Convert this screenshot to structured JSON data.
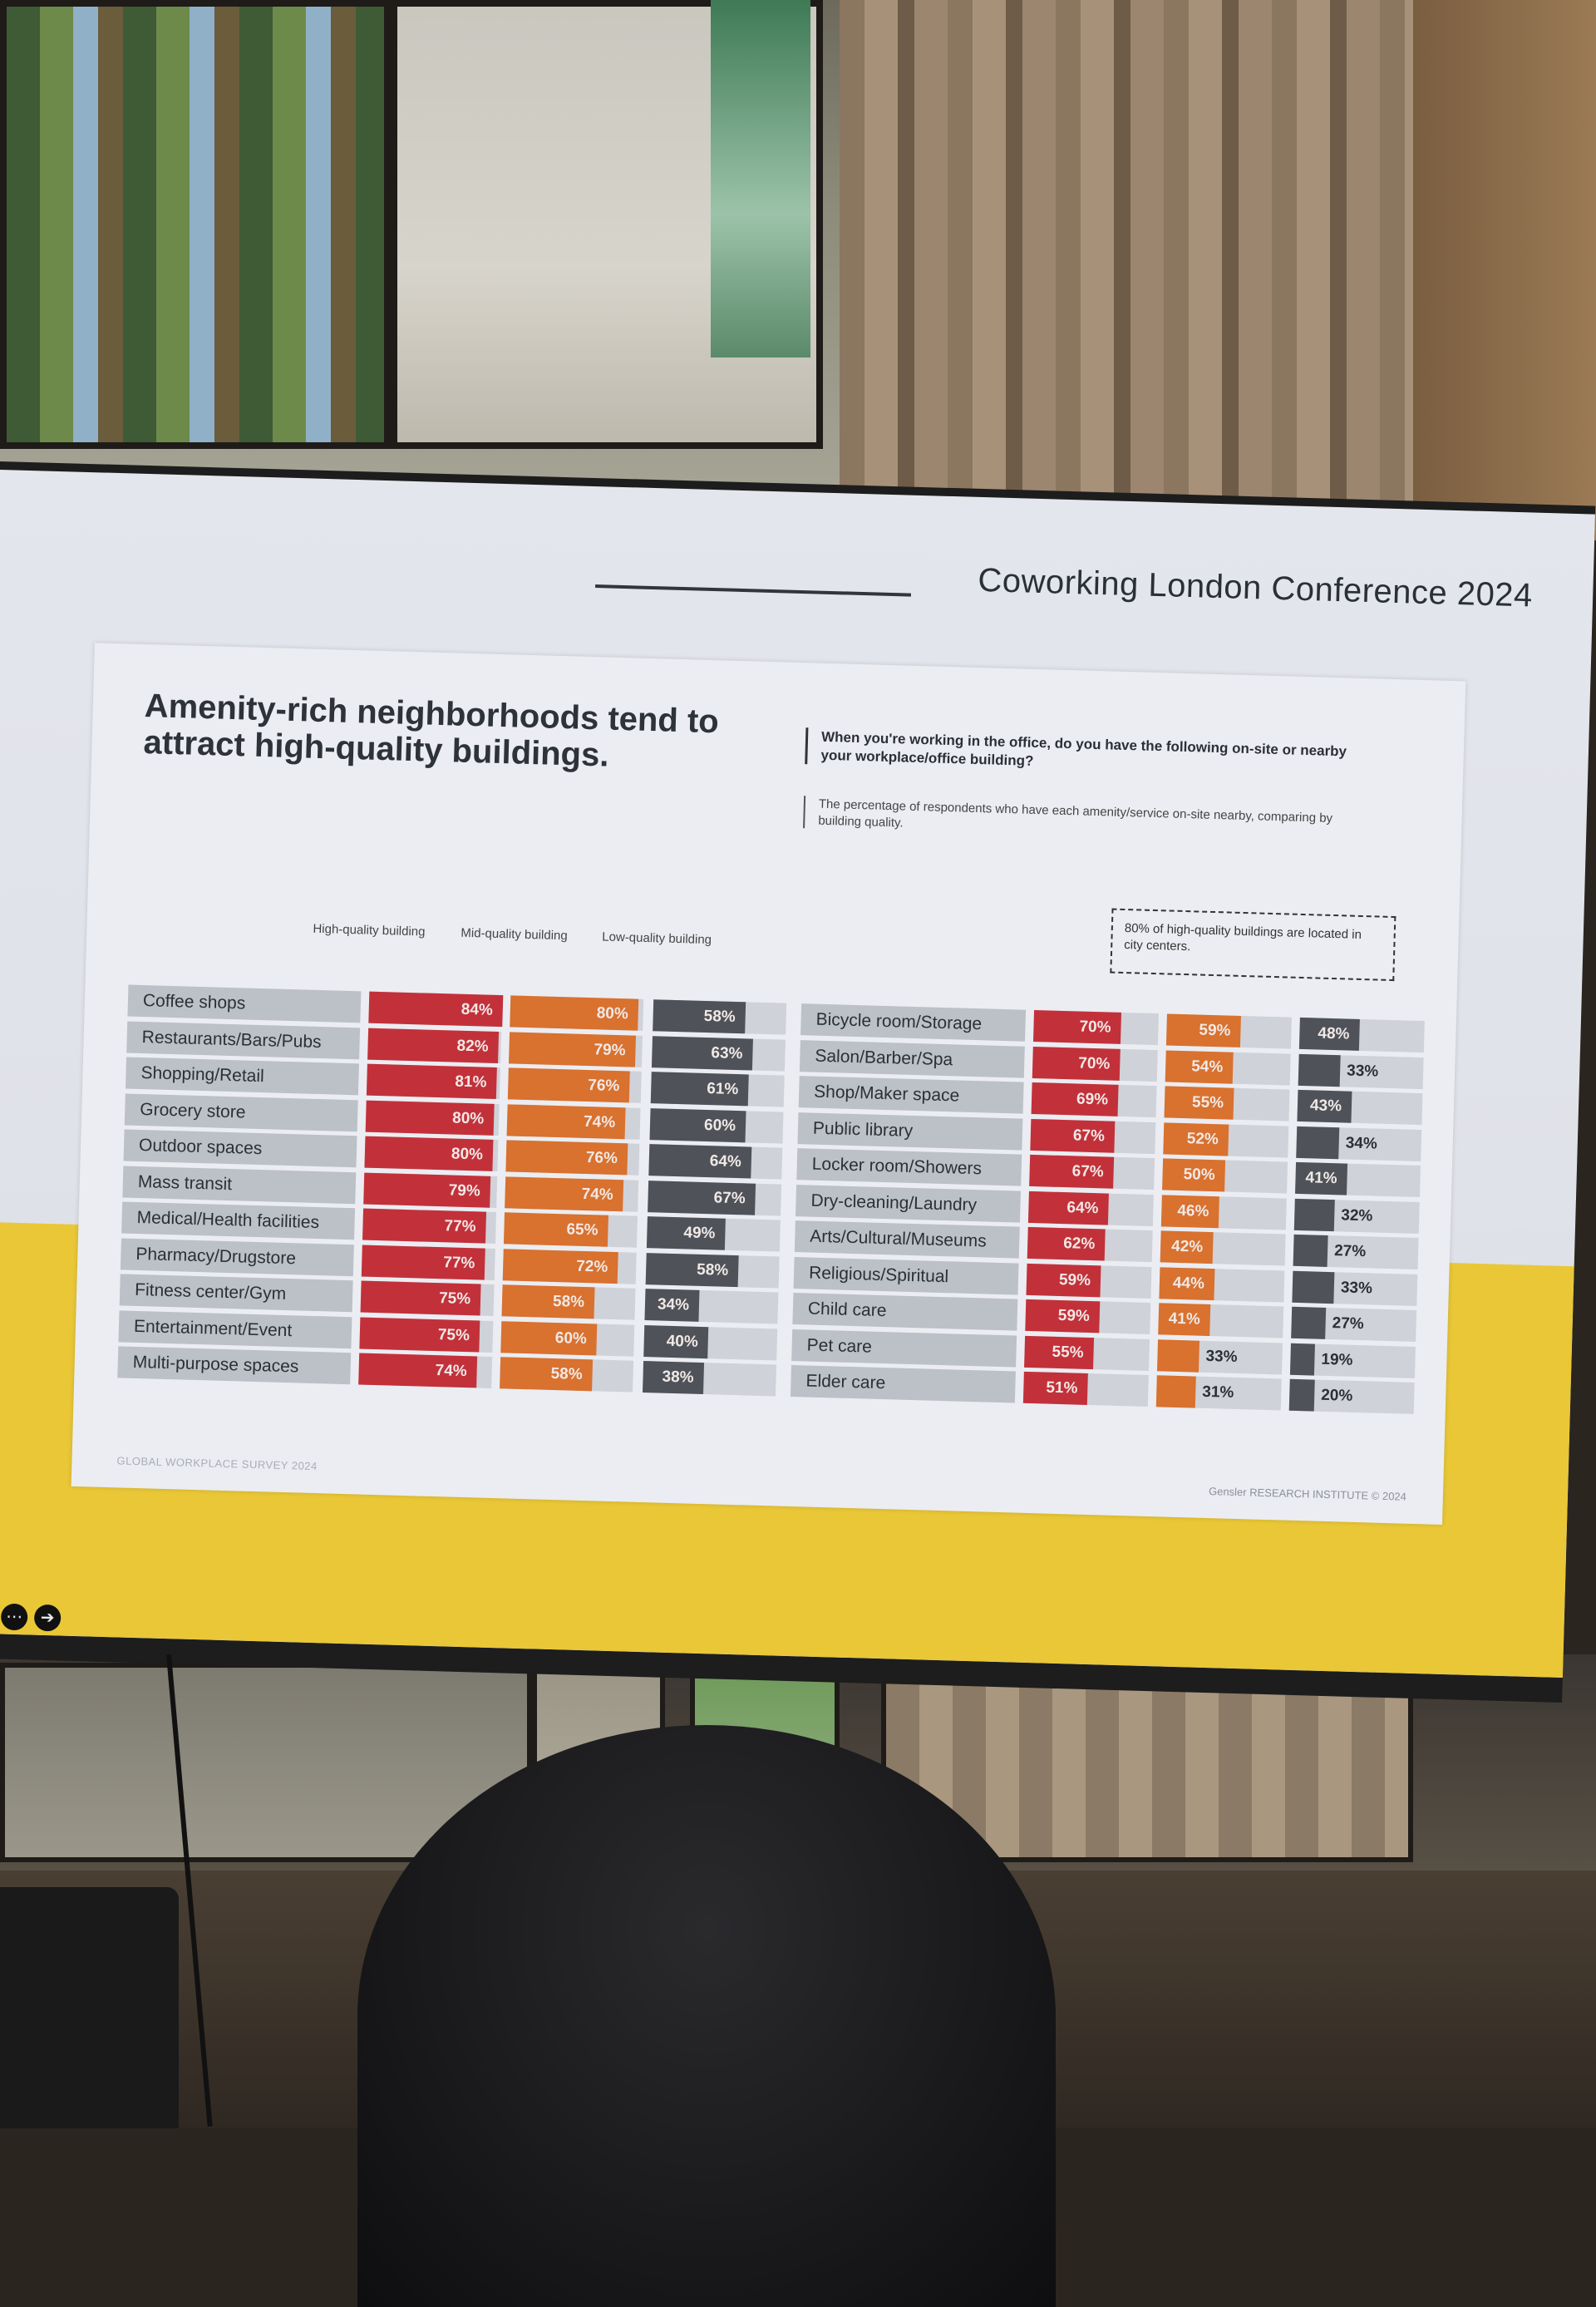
{
  "conference": {
    "title": "Coworking London Conference 2024"
  },
  "slide": {
    "title": "Amenity-rich neighborhoods tend to attract high-quality buildings.",
    "question": "When you're working in the office, do you have the following on-site or nearby your workplace/office building?",
    "subtitle": "The percentage of respondents who have each amenity/service on-site nearby, comparing by building quality.",
    "callout": "80% of high-quality buildings are located in city centers.",
    "column_headers": [
      "High-quality building",
      "Mid-quality building",
      "Low-quality building"
    ],
    "footer_left": "GLOBAL WORKPLACE SURVEY 2024",
    "footer_right": "Gensler RESEARCH INSTITUTE © 2024"
  },
  "colors": {
    "high": "#c2313a",
    "mid": "#d9712f",
    "low": "#4f5359",
    "yellow": "#e9c737"
  },
  "chart_data": {
    "type": "bar",
    "series_names": [
      "High-quality building",
      "Mid-quality building",
      "Low-quality building"
    ],
    "unit": "%",
    "left_panel": [
      {
        "amenity": "Coffee shops",
        "high": 84,
        "mid": 80,
        "low": 58
      },
      {
        "amenity": "Restaurants/Bars/Pubs",
        "high": 82,
        "mid": 79,
        "low": 63
      },
      {
        "amenity": "Shopping/Retail",
        "high": 81,
        "mid": 76,
        "low": 61
      },
      {
        "amenity": "Grocery store",
        "high": 80,
        "mid": 74,
        "low": 60
      },
      {
        "amenity": "Outdoor spaces",
        "high": 80,
        "mid": 76,
        "low": 64
      },
      {
        "amenity": "Mass transit",
        "high": 79,
        "mid": 74,
        "low": 67
      },
      {
        "amenity": "Medical/Health facilities",
        "high": 77,
        "mid": 65,
        "low": 49
      },
      {
        "amenity": "Pharmacy/Drugstore",
        "high": 77,
        "mid": 72,
        "low": 58
      },
      {
        "amenity": "Fitness center/Gym",
        "high": 75,
        "mid": 58,
        "low": 34
      },
      {
        "amenity": "Entertainment/Event",
        "high": 75,
        "mid": 60,
        "low": 40
      },
      {
        "amenity": "Multi-purpose spaces",
        "high": 74,
        "mid": 58,
        "low": 38
      }
    ],
    "right_panel": [
      {
        "amenity": "Bicycle room/Storage",
        "high": 70,
        "mid": 59,
        "low": 48
      },
      {
        "amenity": "Salon/Barber/Spa",
        "high": 70,
        "mid": 54,
        "low": 33
      },
      {
        "amenity": "Shop/Maker space",
        "high": 69,
        "mid": 55,
        "low": 43
      },
      {
        "amenity": "Public library",
        "high": 67,
        "mid": 52,
        "low": 34
      },
      {
        "amenity": "Locker room/Showers",
        "high": 67,
        "mid": 50,
        "low": 41
      },
      {
        "amenity": "Dry-cleaning/Laundry",
        "high": 64,
        "mid": 46,
        "low": 32
      },
      {
        "amenity": "Arts/Cultural/Museums",
        "high": 62,
        "mid": 42,
        "low": 27
      },
      {
        "amenity": "Religious/Spiritual",
        "high": 59,
        "mid": 44,
        "low": 33
      },
      {
        "amenity": "Child care",
        "high": 59,
        "mid": 41,
        "low": 27
      },
      {
        "amenity": "Pet care",
        "high": 55,
        "mid": 33,
        "low": 19
      },
      {
        "amenity": "Elder care",
        "high": 51,
        "mid": 31,
        "low": 20
      }
    ]
  }
}
